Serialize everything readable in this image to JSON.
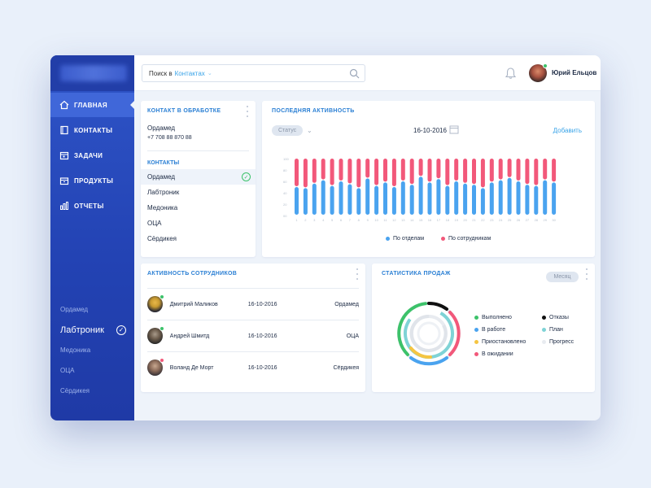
{
  "sidebar": {
    "nav": [
      {
        "label": "ГЛАВНАЯ",
        "icon": "home-icon"
      },
      {
        "label": "КОНТАКТЫ",
        "icon": "book-icon"
      },
      {
        "label": "ЗАДАЧИ",
        "icon": "calendar-icon"
      },
      {
        "label": "ПРОДУКТЫ",
        "icon": "box-icon"
      },
      {
        "label": "ОТЧЕТЫ",
        "icon": "bar-chart-icon"
      }
    ],
    "companies": [
      "Ордамед",
      "Лабтроник",
      "Медоника",
      "ОЦА",
      "Сёрдикея"
    ]
  },
  "topbar": {
    "search_prefix": "Поиск в",
    "search_context": "Контактах",
    "username": "Юрий Ельцов"
  },
  "contact_card": {
    "title": "КОНТАКТ В ОБРАБОТКЕ",
    "name": "Ордамед",
    "phone": "+7 708 88 870 88",
    "contacts_title": "КОНТАКТЫ",
    "contacts": [
      "Ордамед",
      "Лабтроник",
      "Медоника",
      "ОЦА",
      "Сёрдикея"
    ]
  },
  "activity": {
    "title": "ПОСЛЕДНЯЯ АКТИВНОСТЬ",
    "status_label": "Статус",
    "date": "16-10-2016",
    "add_label": "Добавить",
    "legend_blue": "По отделам",
    "legend_red": "По сотрудникам"
  },
  "chart_data": {
    "type": "bar",
    "stacked": true,
    "x": [
      1,
      2,
      3,
      4,
      5,
      6,
      7,
      8,
      9,
      10,
      11,
      12,
      13,
      14,
      15,
      16,
      17,
      18,
      19,
      20,
      21,
      22,
      23,
      24,
      25,
      26,
      27,
      28,
      29,
      30
    ],
    "series": [
      {
        "name": "По отделам",
        "color": "#4aa3ef",
        "values": [
          50,
          48,
          56,
          62,
          52,
          60,
          55,
          48,
          65,
          52,
          58,
          50,
          60,
          54,
          68,
          58,
          64,
          52,
          60,
          56,
          54,
          48,
          58,
          62,
          66,
          60,
          54,
          52,
          62,
          58
        ]
      },
      {
        "name": "По сотрудникам",
        "color": "#f2587a",
        "values": [
          50,
          52,
          44,
          38,
          48,
          40,
          45,
          52,
          35,
          48,
          42,
          50,
          40,
          46,
          32,
          42,
          36,
          48,
          40,
          44,
          46,
          52,
          42,
          38,
          34,
          40,
          46,
          48,
          38,
          42
        ]
      }
    ],
    "ytick_labels": [
      "100",
      "80",
      "60",
      "40",
      "20",
      "00"
    ],
    "ylim": [
      0,
      100
    ],
    "legend_position": "bottom"
  },
  "employees": {
    "title": "АКТИВНОСТЬ СОТРУДНИКОВ",
    "rows": [
      {
        "name": "Дмитрий Маликов",
        "date": "16-10-2016",
        "company": "Ордамед",
        "status_color": "#3cc26a"
      },
      {
        "name": "Андрей Шмитд",
        "date": "16-10-2016",
        "company": "ОЦА",
        "status_color": "#3cc26a"
      },
      {
        "name": "Воланд Де Морт",
        "date": "16-10-2016",
        "company": "Сёрдикея",
        "status_color": "#f2587a"
      }
    ]
  },
  "sales": {
    "title": "СТАТИСТИКА ПРОДАЖ",
    "period": "Месяц",
    "legend": [
      {
        "label": "Выполнено",
        "color": "#3cc26a"
      },
      {
        "label": "В работе",
        "color": "#4aa3ef"
      },
      {
        "label": "Приостановлено",
        "color": "#f5c542"
      },
      {
        "label": "В ожидании",
        "color": "#f2587a"
      },
      {
        "label": "Отказы",
        "color": "#111111"
      },
      {
        "label": "План",
        "color": "#7fd3d6"
      },
      {
        "label": "Прогресс",
        "color": "#e8ebf0"
      }
    ]
  }
}
